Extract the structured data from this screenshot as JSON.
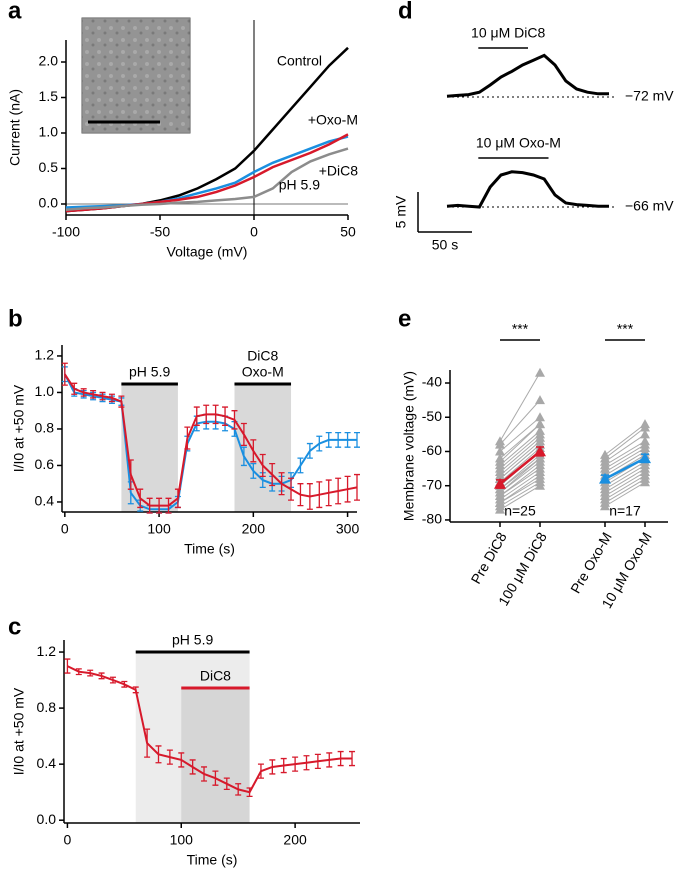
{
  "chart_data": [
    {
      "type": "line",
      "panel": "a",
      "x_label": "Voltage (mV)",
      "y_label": "Current (nA)",
      "xlim": [
        -100,
        50
      ],
      "ylim": [
        -0.155,
        2.31
      ],
      "xticks": [
        -100,
        -50,
        0,
        50
      ],
      "yticks": [
        {
          "value": 0,
          "label": "0.0"
        },
        {
          "value": 0.5,
          "label": "0.5"
        },
        {
          "value": 1,
          "label": "1.0"
        },
        {
          "value": 1.5,
          "label": "1.5"
        },
        {
          "value": 2,
          "label": "2.0"
        }
      ],
      "x": [
        -100,
        -90,
        -80,
        -70,
        -60,
        -50,
        -40,
        -30,
        -20,
        -10,
        0,
        10,
        20,
        30,
        40,
        50
      ],
      "series": [
        {
          "name": "Control",
          "color": "#000000",
          "values": [
            -0.1,
            -0.08,
            -0.06,
            -0.03,
            0,
            0.05,
            0.12,
            0.22,
            0.35,
            0.5,
            0.75,
            1.05,
            1.35,
            1.65,
            1.95,
            2.2
          ]
        },
        {
          "name": "+Oxo-M",
          "color": "#1a8fe0",
          "values": [
            -0.05,
            -0.04,
            -0.03,
            -0.02,
            0,
            0.03,
            0.08,
            0.15,
            0.22,
            0.3,
            0.45,
            0.58,
            0.68,
            0.78,
            0.88,
            0.95
          ]
        },
        {
          "name": "+DiC8",
          "color": "#d7192b",
          "values": [
            -0.1,
            -0.08,
            -0.06,
            -0.03,
            0,
            0.03,
            0.06,
            0.1,
            0.17,
            0.26,
            0.38,
            0.52,
            0.62,
            0.72,
            0.84,
            0.98
          ]
        },
        {
          "name": "pH 5.9",
          "color": "#8c8c8c",
          "values": [
            -0.08,
            -0.06,
            -0.05,
            -0.03,
            -0.01,
            0,
            0.02,
            0.03,
            0.05,
            0.07,
            0.1,
            0.22,
            0.45,
            0.6,
            0.7,
            0.78
          ]
        }
      ]
    },
    {
      "type": "timecourse",
      "panel": "b",
      "x_label": "Time (s)",
      "y_label": "I/I0 at +50 mV",
      "xlim": [
        -3,
        310
      ],
      "ylim": [
        0.345,
        1.26
      ],
      "xticks": [
        0,
        100,
        200,
        300
      ],
      "yticks": [
        0.4,
        0.6,
        0.8,
        {
          "value": 1,
          "label": "1.0"
        },
        1.2
      ],
      "periods": [
        {
          "start": 60,
          "end": 120,
          "labels": [
            "pH 5.9"
          ],
          "label_colors": [
            "#000000"
          ],
          "shade": "#d9d9d9",
          "bar_color": "#000000"
        },
        {
          "start": 180,
          "end": 240,
          "labels": [
            "DiC8",
            "Oxo-M"
          ],
          "label_colors": [
            "#000000",
            "#1a8fe0"
          ],
          "shade": "#d9d9d9",
          "bar_color": "#000000"
        }
      ],
      "x": [
        0,
        10,
        20,
        30,
        40,
        50,
        60,
        70,
        80,
        90,
        100,
        110,
        120,
        130,
        140,
        150,
        160,
        170,
        180,
        190,
        200,
        210,
        220,
        230,
        240,
        250,
        260,
        270,
        280,
        290,
        300,
        310
      ],
      "series": [
        {
          "color": "#1a8fe0",
          "values": [
            1.1,
            1.0,
            0.99,
            0.98,
            0.97,
            0.96,
            0.95,
            0.45,
            0.38,
            0.36,
            0.36,
            0.36,
            0.4,
            0.72,
            0.83,
            0.84,
            0.84,
            0.83,
            0.8,
            0.65,
            0.57,
            0.52,
            0.5,
            0.5,
            0.52,
            0.6,
            0.68,
            0.72,
            0.74,
            0.74,
            0.74,
            0.74
          ],
          "errors": [
            0.04,
            0.02,
            0.02,
            0.02,
            0.02,
            0.02,
            0.02,
            0.06,
            0.03,
            0.02,
            0.02,
            0.02,
            0.03,
            0.04,
            0.04,
            0.04,
            0.04,
            0.04,
            0.04,
            0.05,
            0.04,
            0.04,
            0.04,
            0.04,
            0.04,
            0.04,
            0.04,
            0.04,
            0.04,
            0.04,
            0.04,
            0.04
          ]
        },
        {
          "color": "#d7192b",
          "values": [
            1.1,
            1.02,
            1.0,
            0.99,
            0.98,
            0.97,
            0.95,
            0.55,
            0.42,
            0.38,
            0.38,
            0.38,
            0.42,
            0.75,
            0.87,
            0.88,
            0.88,
            0.87,
            0.85,
            0.77,
            0.68,
            0.6,
            0.55,
            0.5,
            0.47,
            0.44,
            0.43,
            0.44,
            0.45,
            0.46,
            0.47,
            0.48
          ],
          "errors": [
            0.06,
            0.03,
            0.02,
            0.02,
            0.02,
            0.02,
            0.03,
            0.08,
            0.05,
            0.04,
            0.04,
            0.04,
            0.05,
            0.06,
            0.05,
            0.05,
            0.05,
            0.05,
            0.05,
            0.06,
            0.06,
            0.06,
            0.06,
            0.06,
            0.06,
            0.06,
            0.07,
            0.07,
            0.07,
            0.07,
            0.07,
            0.07
          ]
        }
      ]
    },
    {
      "type": "timecourse",
      "panel": "c",
      "x_label": "Time (s)",
      "y_label": "I/I0 at +50 mV",
      "xlim": [
        -3,
        257
      ],
      "ylim": [
        -0.02,
        1.286
      ],
      "xticks": [
        0,
        100,
        200
      ],
      "yticks": [
        {
          "value": 0,
          "label": "0.0"
        },
        0.4,
        0.8,
        1.2
      ],
      "periods": [
        {
          "start": 60,
          "end": 160,
          "labels": [
            "pH 5.9"
          ],
          "label_colors": [
            "#000000"
          ],
          "shade": "#ececec",
          "bar_color": "#000000"
        },
        {
          "start": 100,
          "end": 160,
          "labels": [
            "DiC8"
          ],
          "label_colors": [
            "#d7192b"
          ],
          "shade": "#d6d6d6",
          "bar_color": "#d7192b"
        }
      ],
      "x": [
        0,
        10,
        20,
        30,
        40,
        50,
        60,
        70,
        80,
        90,
        100,
        110,
        120,
        130,
        140,
        150,
        160,
        170,
        180,
        190,
        200,
        210,
        220,
        230,
        240,
        250
      ],
      "series": [
        {
          "color": "#d7192b",
          "values": [
            1.1,
            1.06,
            1.05,
            1.03,
            1.0,
            0.97,
            0.93,
            0.55,
            0.47,
            0.45,
            0.43,
            0.38,
            0.33,
            0.3,
            0.26,
            0.22,
            0.2,
            0.35,
            0.38,
            0.39,
            0.4,
            0.41,
            0.42,
            0.43,
            0.44,
            0.44
          ],
          "errors": [
            0.05,
            0.02,
            0.02,
            0.02,
            0.02,
            0.02,
            0.02,
            0.1,
            0.06,
            0.05,
            0.05,
            0.05,
            0.05,
            0.05,
            0.04,
            0.04,
            0.03,
            0.05,
            0.05,
            0.05,
            0.05,
            0.05,
            0.05,
            0.05,
            0.05,
            0.05
          ]
        }
      ]
    },
    {
      "type": "trace",
      "panel": "d",
      "x": [
        0,
        10,
        20,
        30,
        40,
        50,
        60,
        70,
        80,
        90,
        100,
        110,
        120,
        130,
        140,
        150
      ],
      "series": [
        {
          "color": "#d7192b",
          "drug": {
            "start": 29,
            "end": 75,
            "label": "10 μM DiC8"
          },
          "baseline_label": "−72 mV",
          "values": [
            0.1,
            0.2,
            0.3,
            0.6,
            1.5,
            2.5,
            3.2,
            4.0,
            4.6,
            5.2,
            4.0,
            2.0,
            1.0,
            0.6,
            0.4,
            0.4
          ]
        },
        {
          "color": "#1a8fe0",
          "drug": {
            "start": 29,
            "end": 94,
            "label": "10 μM Oxo-M"
          },
          "baseline_label": "−66 mV",
          "values": [
            0.1,
            0.2,
            0.1,
            0,
            2.5,
            4.0,
            4.4,
            4.3,
            4.0,
            3.5,
            1.5,
            0.5,
            0.3,
            0.2,
            0.1,
            0.1
          ]
        }
      ],
      "scalebars": [
        {
          "value": 5,
          "label": "5 mV"
        },
        {
          "value": 50,
          "label": "50 s"
        }
      ]
    },
    {
      "type": "paired",
      "panel": "e",
      "y_label": "Membrane voltage (mV)",
      "ylim": [
        -80.6,
        -36.2
      ],
      "yticks": [
        -40,
        -50,
        -60,
        -70,
        -80
      ],
      "categories": [
        "Pre DiC8",
        "100 μM DiC8",
        "Pre Oxo-M",
        "10 μM Oxo-M"
      ],
      "groups": [
        {
          "color": "#d7192b",
          "n_label": "n=25",
          "significance": "***",
          "mean": [
            -69.5,
            -60
          ],
          "sem": [
            1.2,
            1.3
          ],
          "pre": [
            -57,
            -58,
            -60,
            -62,
            -63,
            -64,
            -65,
            -66,
            -67,
            -68,
            -68,
            -69,
            -70,
            -70,
            -71,
            -71,
            -72,
            -72,
            -73,
            -73,
            -74,
            -75,
            -75,
            -76,
            -77
          ],
          "post": [
            -37,
            -45,
            -50,
            -52,
            -52,
            -54,
            -55,
            -56,
            -57,
            -58,
            -58,
            -59,
            -60,
            -60,
            -61,
            -62,
            -62,
            -63,
            -64,
            -65,
            -66,
            -67,
            -68,
            -69,
            -70
          ]
        },
        {
          "color": "#1a8fe0",
          "n_label": "n=17",
          "significance": "***",
          "mean": [
            -68,
            -62
          ],
          "sem": [
            1.1,
            1.2
          ],
          "pre": [
            -61,
            -62,
            -63,
            -64,
            -65,
            -66,
            -67,
            -68,
            -68,
            -69,
            -70,
            -71,
            -72,
            -73,
            -74,
            -75,
            -76
          ],
          "post": [
            -52,
            -53,
            -55,
            -57,
            -58,
            -59,
            -60,
            -61,
            -62,
            -62,
            -63,
            -64,
            -65,
            -66,
            -67,
            -68,
            -69
          ]
        }
      ]
    }
  ]
}
